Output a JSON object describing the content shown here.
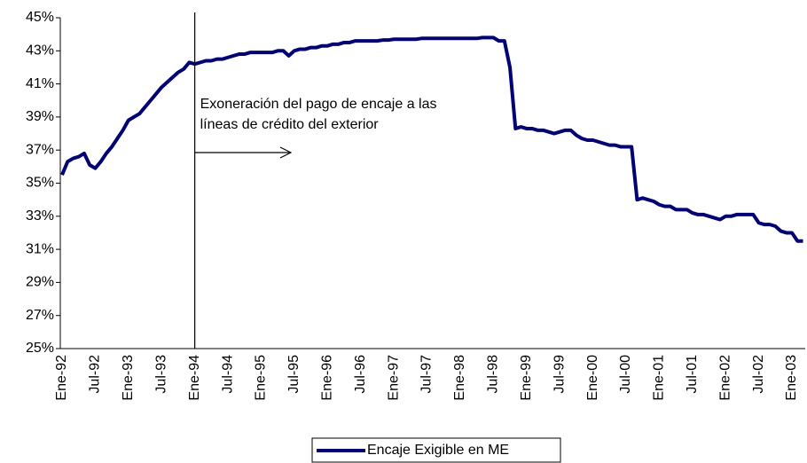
{
  "chart_data": {
    "type": "line",
    "categories": [
      "Ene-92",
      null,
      null,
      null,
      null,
      null,
      "Jul-92",
      null,
      null,
      null,
      null,
      null,
      "Ene-93",
      null,
      null,
      null,
      null,
      null,
      "Jul-93",
      null,
      null,
      null,
      null,
      null,
      "Ene-94",
      null,
      null,
      null,
      null,
      null,
      "Jul-94",
      null,
      null,
      null,
      null,
      null,
      "Ene-95",
      null,
      null,
      null,
      null,
      null,
      "Jul-95",
      null,
      null,
      null,
      null,
      null,
      "Ene-96",
      null,
      null,
      null,
      null,
      null,
      "Jul-96",
      null,
      null,
      null,
      null,
      null,
      "Ene-97",
      null,
      null,
      null,
      null,
      null,
      "Jul-97",
      null,
      null,
      null,
      null,
      null,
      "Ene-98",
      null,
      null,
      null,
      null,
      null,
      "Jul-98",
      null,
      null,
      null,
      null,
      null,
      "Ene-99",
      null,
      null,
      null,
      null,
      null,
      "Jul-99",
      null,
      null,
      null,
      null,
      null,
      "Ene-00",
      null,
      null,
      null,
      null,
      null,
      "Jul-00",
      null,
      null,
      null,
      null,
      null,
      "Ene-01",
      null,
      null,
      null,
      null,
      null,
      "Jul-01",
      null,
      null,
      null,
      null,
      null,
      "Ene-02",
      null,
      null,
      null,
      null,
      null,
      "Jul-02",
      null,
      null,
      null,
      null,
      null,
      "Ene-03",
      null,
      null
    ],
    "series": [
      {
        "name": "Encaje Exigible en ME",
        "color": "#000080",
        "values": [
          35.5,
          36.3,
          36.5,
          36.6,
          36.8,
          36.1,
          35.9,
          36.3,
          36.8,
          37.2,
          37.7,
          38.2,
          38.8,
          39.0,
          39.2,
          39.6,
          40.0,
          40.4,
          40.8,
          41.1,
          41.4,
          41.7,
          41.9,
          42.3,
          42.2,
          42.3,
          42.4,
          42.4,
          42.5,
          42.5,
          42.6,
          42.7,
          42.8,
          42.8,
          42.9,
          42.9,
          42.9,
          42.9,
          42.9,
          43.0,
          43.0,
          42.7,
          43.0,
          43.1,
          43.1,
          43.2,
          43.2,
          43.3,
          43.3,
          43.4,
          43.4,
          43.5,
          43.5,
          43.6,
          43.6,
          43.6,
          43.6,
          43.6,
          43.65,
          43.65,
          43.7,
          43.7,
          43.7,
          43.7,
          43.7,
          43.75,
          43.75,
          43.75,
          43.75,
          43.75,
          43.75,
          43.75,
          43.75,
          43.75,
          43.75,
          43.75,
          43.8,
          43.8,
          43.8,
          43.6,
          43.6,
          42.0,
          38.3,
          38.4,
          38.3,
          38.3,
          38.2,
          38.2,
          38.1,
          38.0,
          38.1,
          38.2,
          38.2,
          37.9,
          37.7,
          37.6,
          37.6,
          37.5,
          37.4,
          37.3,
          37.3,
          37.2,
          37.2,
          37.2,
          34.0,
          34.1,
          34.0,
          33.9,
          33.7,
          33.6,
          33.6,
          33.4,
          33.4,
          33.4,
          33.2,
          33.1,
          33.1,
          33.0,
          32.9,
          32.8,
          33.0,
          33.0,
          33.1,
          33.1,
          33.1,
          33.1,
          32.6,
          32.5,
          32.5,
          32.4,
          32.1,
          32.0,
          32.0,
          31.5,
          31.5
        ]
      }
    ],
    "ylim": [
      25,
      45
    ],
    "yticks": [
      {
        "value": 25,
        "label": "25%"
      },
      {
        "value": 27,
        "label": "27%"
      },
      {
        "value": 29,
        "label": "29%"
      },
      {
        "value": 31,
        "label": "31%"
      },
      {
        "value": 33,
        "label": "33%"
      },
      {
        "value": 35,
        "label": "35%"
      },
      {
        "value": 37,
        "label": "37%"
      },
      {
        "value": 39,
        "label": "39%"
      },
      {
        "value": 41,
        "label": "41%"
      },
      {
        "value": 43,
        "label": "43%"
      },
      {
        "value": 45,
        "label": "45%"
      }
    ],
    "grid": false,
    "legend": "bottom",
    "annotation": {
      "lines": [
        "Exoneración del pago de encaje a las",
        "líneas de crédito del exterior"
      ],
      "at": "Ene-94"
    }
  }
}
